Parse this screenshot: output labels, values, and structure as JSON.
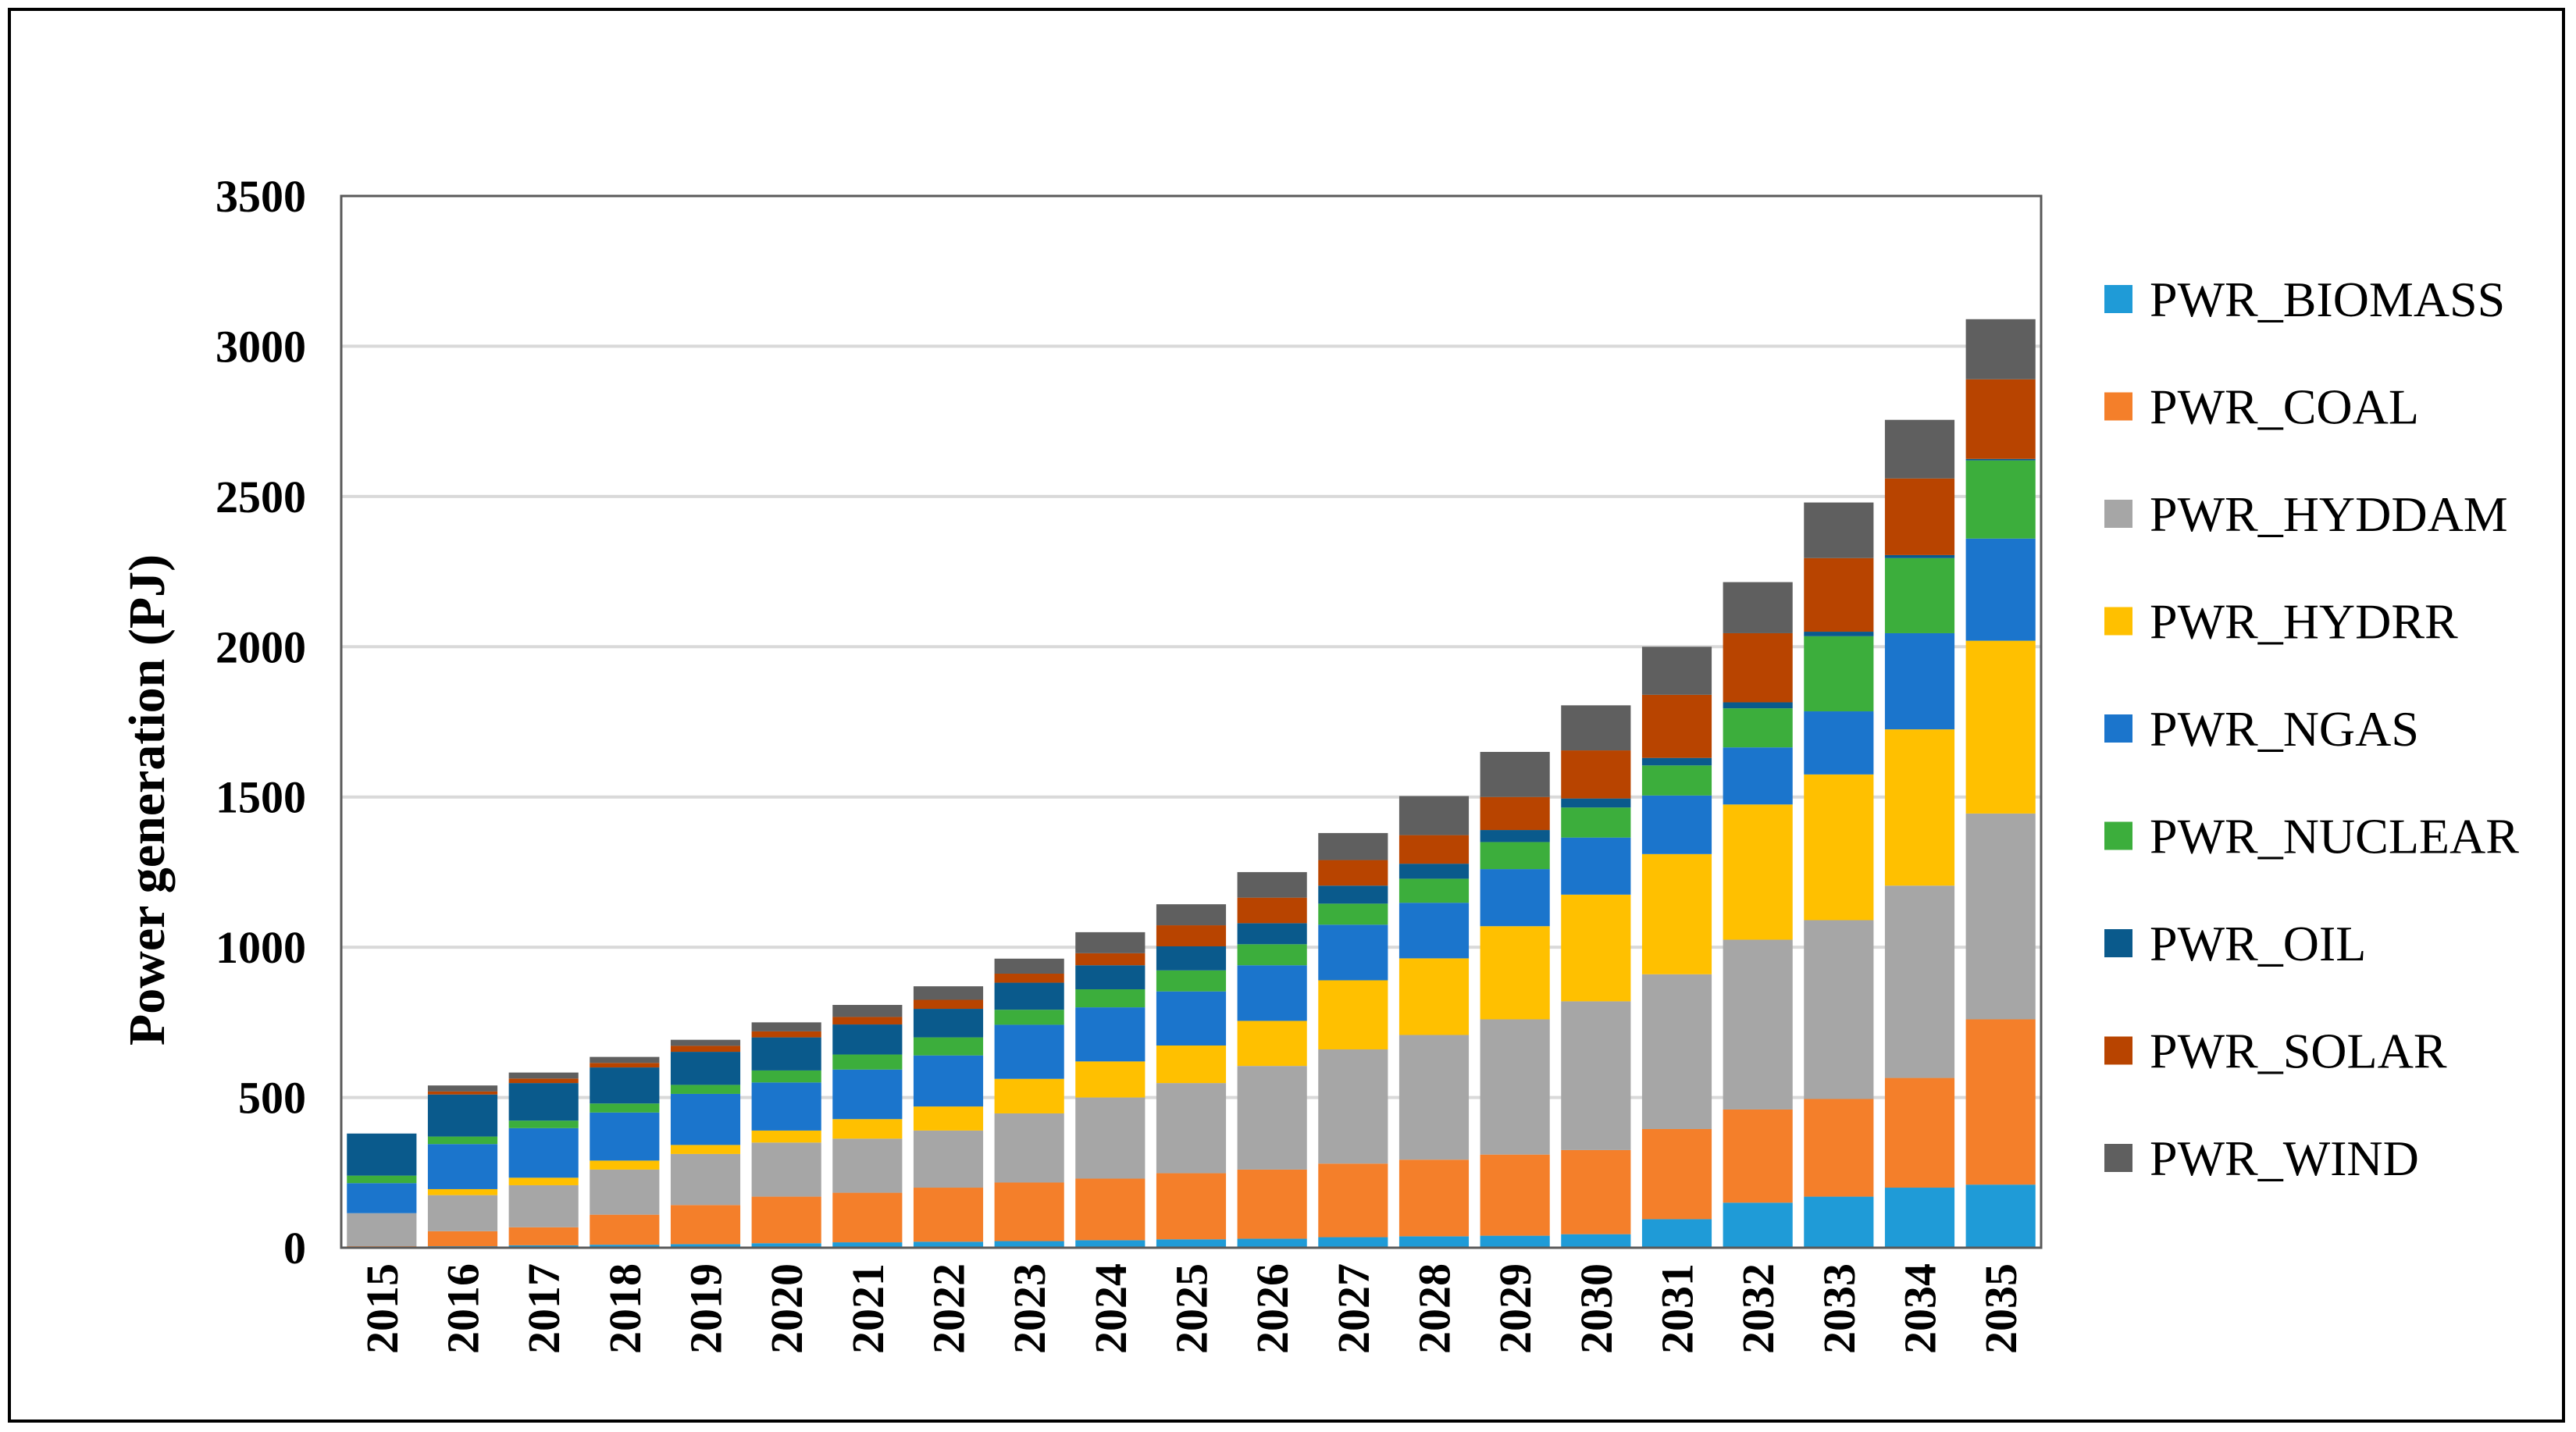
{
  "chart_data": {
    "type": "bar",
    "stacked": true,
    "title": "",
    "xlabel": "",
    "ylabel": "Power generation (PJ)",
    "ylim": [
      0,
      3500
    ],
    "yticks": [
      0,
      500,
      1000,
      1500,
      2000,
      2500,
      3000,
      3500
    ],
    "grid": "horizontal",
    "legend_position": "right",
    "categories": [
      "2015",
      "2016",
      "2017",
      "2018",
      "2019",
      "2020",
      "2021",
      "2022",
      "2023",
      "2024",
      "2025",
      "2026",
      "2027",
      "2028",
      "2029",
      "2030",
      "2031",
      "2032",
      "2033",
      "2034",
      "2035"
    ],
    "series": [
      {
        "name": "PWR_BIOMASS",
        "color": "#1f9bd7",
        "values": [
          0,
          5,
          8,
          10,
          12,
          15,
          18,
          20,
          22,
          25,
          28,
          30,
          35,
          38,
          40,
          45,
          95,
          150,
          170,
          200,
          210
        ]
      },
      {
        "name": "PWR_COAL",
        "color": "#f47f2a",
        "values": [
          5,
          50,
          60,
          100,
          130,
          155,
          165,
          180,
          195,
          205,
          220,
          230,
          245,
          255,
          270,
          280,
          300,
          310,
          325,
          365,
          550
        ]
      },
      {
        "name": "PWR_HYDDAM",
        "color": "#a6a6a6",
        "values": [
          110,
          120,
          140,
          150,
          170,
          180,
          180,
          190,
          230,
          270,
          300,
          345,
          380,
          415,
          450,
          495,
          515,
          565,
          595,
          640,
          685
        ]
      },
      {
        "name": "PWR_HYDRR",
        "color": "#ffc000",
        "values": [
          0,
          20,
          25,
          30,
          30,
          40,
          65,
          80,
          115,
          120,
          125,
          150,
          230,
          255,
          310,
          355,
          400,
          450,
          485,
          520,
          575
        ]
      },
      {
        "name": "PWR_NGAS",
        "color": "#1b75cc",
        "values": [
          100,
          150,
          165,
          160,
          170,
          160,
          165,
          170,
          180,
          180,
          180,
          185,
          185,
          185,
          190,
          190,
          195,
          190,
          210,
          320,
          340
        ]
      },
      {
        "name": "PWR_NUCLEAR",
        "color": "#3cae3c",
        "values": [
          25,
          25,
          25,
          30,
          30,
          40,
          50,
          60,
          50,
          60,
          70,
          70,
          70,
          80,
          90,
          100,
          100,
          130,
          250,
          250,
          260
        ]
      },
      {
        "name": "PWR_OIL",
        "color": "#0a5a8c",
        "values": [
          140,
          140,
          125,
          120,
          110,
          110,
          100,
          95,
          90,
          80,
          80,
          70,
          60,
          50,
          40,
          30,
          25,
          20,
          15,
          10,
          5
        ]
      },
      {
        "name": "PWR_SOLAR",
        "color": "#b84400",
        "values": [
          0,
          10,
          15,
          15,
          20,
          20,
          25,
          30,
          30,
          40,
          70,
          85,
          85,
          95,
          110,
          160,
          210,
          230,
          245,
          255,
          265
        ]
      },
      {
        "name": "PWR_WIND",
        "color": "#5f5f5f",
        "values": [
          0,
          20,
          20,
          20,
          20,
          30,
          40,
          45,
          50,
          70,
          70,
          85,
          90,
          130,
          150,
          150,
          160,
          170,
          185,
          195,
          200
        ]
      }
    ]
  }
}
